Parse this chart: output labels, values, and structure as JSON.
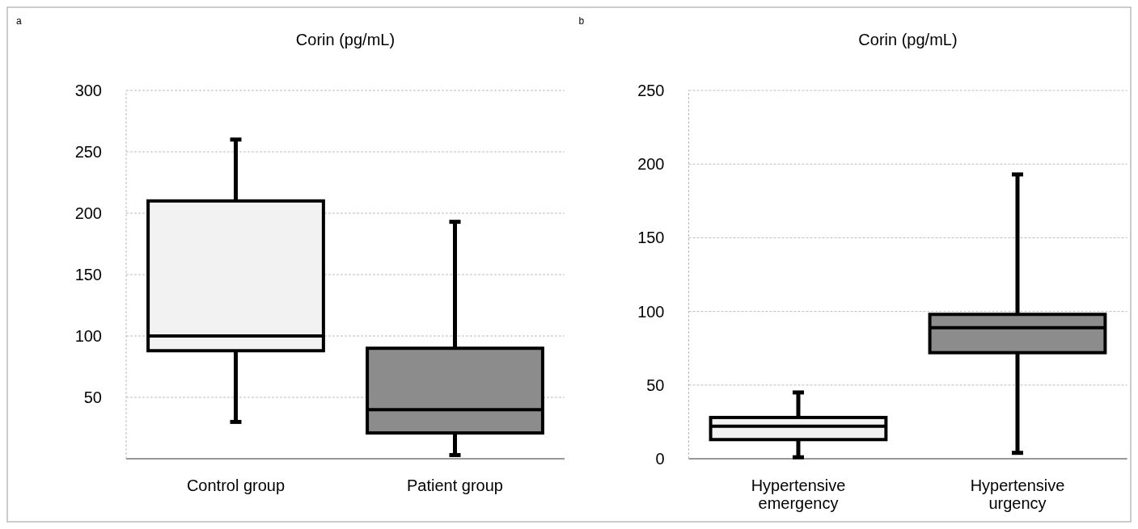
{
  "chart_data": [
    {
      "type": "box",
      "title": "Corin (pg/mL)",
      "annotations": [
        "a"
      ],
      "categories": [
        "Control group",
        "Patient group"
      ],
      "colors": [
        "#f2f2f2",
        "#8c8c8c"
      ],
      "boxes": [
        {
          "low": 30,
          "q1": 88,
          "median": 100,
          "q3": 210,
          "high": 260
        },
        {
          "low": 3,
          "q1": 21,
          "median": 40,
          "q3": 90,
          "high": 193
        }
      ],
      "ylim": [
        0,
        300
      ],
      "yticks": [
        50,
        100,
        150,
        200,
        250,
        300
      ],
      "grid": "y"
    },
    {
      "type": "box",
      "title": "Corin (pg/mL)",
      "annotations": [
        "b"
      ],
      "categories": [
        "Hypertensive emergency",
        "Hypertensive urgency"
      ],
      "colors": [
        "#f2f2f2",
        "#8c8c8c"
      ],
      "boxes": [
        {
          "low": 1,
          "q1": 13,
          "median": 22,
          "q3": 28,
          "high": 45
        },
        {
          "low": 4,
          "q1": 72,
          "median": 89,
          "q3": 98,
          "high": 193
        }
      ],
      "ylim": [
        0,
        250
      ],
      "yticks": [
        0,
        50,
        100,
        150,
        200,
        250
      ],
      "grid": "y"
    }
  ]
}
